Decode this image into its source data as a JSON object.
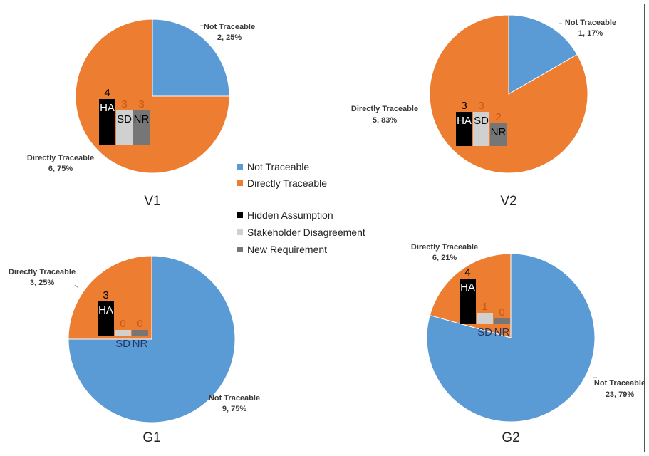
{
  "colors": {
    "not_traceable": "#5b9bd5",
    "directly_traceable": "#ed7d31",
    "hidden_assumption": "#000000",
    "stakeholder_disagreement": "#d0d0d0",
    "new_requirement": "#767676"
  },
  "legend": {
    "not_traceable": "Not Traceable",
    "directly_traceable": "Directly Traceable",
    "hidden_assumption": "Hidden Assumption",
    "stakeholder_disagreement": "Stakeholder Disagreement",
    "new_requirement": "New Requirement"
  },
  "chart_data": [
    {
      "type": "pie",
      "title": "V1",
      "slices": [
        {
          "label": "Not Traceable",
          "value": 2,
          "percent": "25%",
          "text": "2, 25%"
        },
        {
          "label": "Directly Traceable",
          "value": 6,
          "percent": "75%",
          "text": "6, 75%"
        }
      ],
      "breakdown": {
        "type": "bar",
        "categories": [
          "HA",
          "SD",
          "NR"
        ],
        "values": [
          4,
          3,
          3
        ]
      }
    },
    {
      "type": "pie",
      "title": "V2",
      "slices": [
        {
          "label": "Not Traceable",
          "value": 1,
          "percent": "17%",
          "text": "1, 17%"
        },
        {
          "label": "Directly Traceable",
          "value": 5,
          "percent": "83%",
          "text": "5, 83%"
        }
      ],
      "breakdown": {
        "type": "bar",
        "categories": [
          "HA",
          "SD",
          "NR"
        ],
        "values": [
          3,
          3,
          2
        ]
      }
    },
    {
      "type": "pie",
      "title": "G1",
      "slices": [
        {
          "label": "Not Traceable",
          "value": 9,
          "percent": "75%",
          "text": "9, 75%"
        },
        {
          "label": "Directly Traceable",
          "value": 3,
          "percent": "25%",
          "text": "3, 25%"
        }
      ],
      "breakdown": {
        "type": "bar",
        "categories": [
          "HA",
          "SD",
          "NR"
        ],
        "values": [
          3,
          0,
          0
        ]
      }
    },
    {
      "type": "pie",
      "title": "G2",
      "slices": [
        {
          "label": "Not Traceable",
          "value": 23,
          "percent": "79%",
          "text": "23, 79%"
        },
        {
          "label": "Directly Traceable",
          "value": 6,
          "percent": "21%",
          "text": "6, 21%"
        }
      ],
      "breakdown": {
        "type": "bar",
        "categories": [
          "HA",
          "SD",
          "NR"
        ],
        "values": [
          4,
          1,
          0
        ]
      }
    }
  ]
}
